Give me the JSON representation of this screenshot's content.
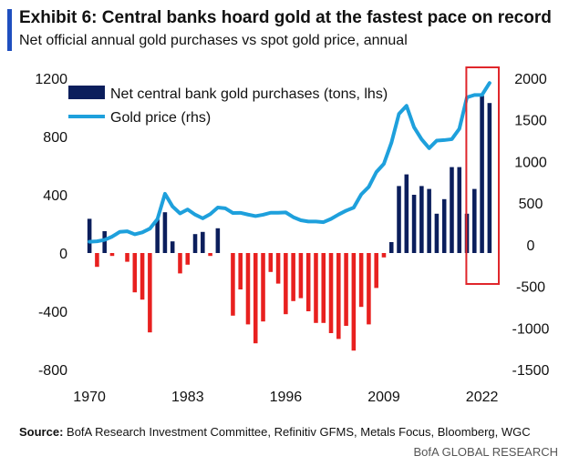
{
  "header": {
    "title": "Exhibit 6: Central banks hoard gold at the fastest pace on record",
    "subtitle": "Net official annual gold purchases vs spot gold price, annual"
  },
  "footer": {
    "source_label": "Source:",
    "source_text": " BofA Research Investment Committee, Refinitiv GFMS, Metals Focus, Bloomberg, WGC",
    "brand": "BofA GLOBAL RESEARCH"
  },
  "colors": {
    "accent": "#1f4fbf",
    "bars_positive": "#0b1e5c",
    "bars_negative": "#e8201f",
    "line": "#1ea0dc",
    "highlight": "#e0262b"
  },
  "chart_data": {
    "type": "bar",
    "title": "Exhibit 6: Central banks hoard gold at the fastest pace on record",
    "subtitle": "Net official annual gold purchases vs spot gold price, annual",
    "years": [
      1970,
      1971,
      1972,
      1973,
      1974,
      1975,
      1976,
      1977,
      1978,
      1979,
      1980,
      1981,
      1982,
      1983,
      1984,
      1985,
      1986,
      1987,
      1988,
      1989,
      1990,
      1991,
      1992,
      1993,
      1994,
      1995,
      1996,
      1997,
      1998,
      1999,
      2000,
      2001,
      2002,
      2003,
      2004,
      2005,
      2006,
      2007,
      2008,
      2009,
      2010,
      2011,
      2012,
      2013,
      2014,
      2015,
      2016,
      2017,
      2018,
      2019,
      2020,
      2021,
      2022,
      2023
    ],
    "xticks": [
      1970,
      1983,
      1996,
      2009,
      2022
    ],
    "xtick_labels": [
      "1970",
      "1983",
      "1996",
      "2009",
      "2022"
    ],
    "series": [
      {
        "name": "Net central bank gold purchases (tons, lhs)",
        "type": "bar",
        "axis": "left",
        "values": [
          235,
          -95,
          150,
          -20,
          0,
          -60,
          -270,
          -320,
          -545,
          230,
          280,
          80,
          -140,
          -80,
          130,
          145,
          -20,
          170,
          0,
          -430,
          -250,
          -490,
          -620,
          -470,
          -130,
          -210,
          -420,
          -330,
          -310,
          -400,
          -480,
          -480,
          -550,
          -590,
          -500,
          -670,
          -370,
          -490,
          -240,
          -30,
          75,
          460,
          540,
          400,
          460,
          440,
          270,
          370,
          590,
          590,
          270,
          440,
          1080,
          1030
        ]
      },
      {
        "name": "Gold price (rhs)",
        "type": "line",
        "axis": "right",
        "values": [
          36,
          41,
          58,
          97,
          154,
          161,
          125,
          148,
          193,
          307,
          612,
          460,
          376,
          424,
          361,
          317,
          368,
          447,
          437,
          381,
          383,
          362,
          344,
          360,
          384,
          384,
          388,
          331,
          294,
          279,
          279,
          271,
          310,
          363,
          409,
          445,
          604,
          695,
          872,
          972,
          1225,
          1572,
          1669,
          1411,
          1266,
          1160,
          1251,
          1257,
          1268,
          1393,
          1770,
          1799,
          1800,
          1943
        ]
      }
    ],
    "ylim_left": [
      -800,
      1200
    ],
    "yticks_left": [
      1200,
      800,
      400,
      0,
      -400,
      -800
    ],
    "ytick_labels_left": [
      "1200",
      "800",
      "400",
      "0",
      "-400",
      "-800"
    ],
    "ylim_right": [
      -1500,
      2000
    ],
    "yticks_right": [
      2000,
      1500,
      1000,
      500,
      0,
      -500,
      -1000,
      -1500
    ],
    "ytick_labels_right": [
      "2000",
      "1500",
      "1000",
      "500",
      "0",
      "-500",
      "-1000",
      "-1500"
    ],
    "legend": [
      "Net central bank gold purchases (tons, lhs)",
      "Gold price (rhs)"
    ],
    "legend_position": "top-left",
    "highlight_years": [
      2022,
      2023
    ],
    "grid": false
  }
}
